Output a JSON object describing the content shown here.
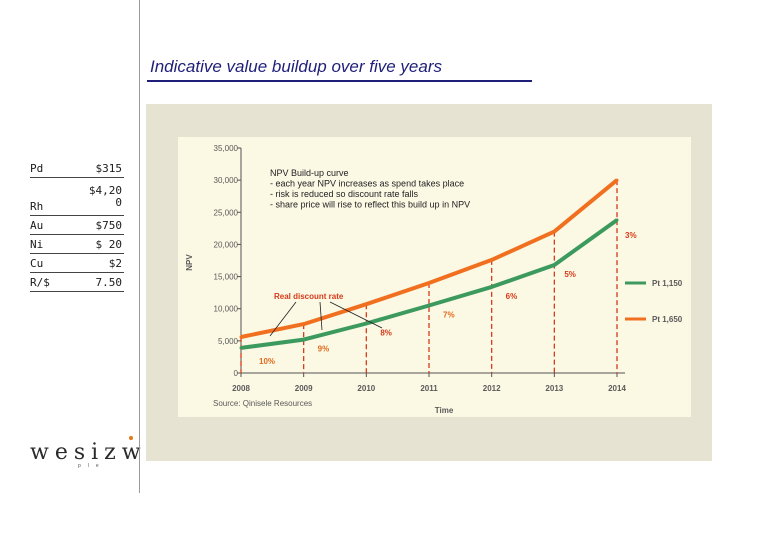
{
  "page": {
    "title": "Indicative value buildup over five years"
  },
  "assumptions_table": [
    {
      "metal": "Pd",
      "value": "$315"
    },
    {
      "metal": "Rh",
      "value": "$4,20\n0"
    },
    {
      "metal": "Au",
      "value": "$750"
    },
    {
      "metal": "Ni",
      "value": "$ 20"
    },
    {
      "metal": "Cu",
      "value": "$2"
    },
    {
      "metal": "R/$",
      "value": "7.50"
    }
  ],
  "logo": {
    "word": "wesizwe",
    "sub": "ple"
  },
  "colors": {
    "title": "#1f1f7a",
    "orange": "#f07020",
    "green": "#3c9a5e",
    "red_text": "#d63a1a",
    "panel": "#e7e3d3",
    "plot": "#fbf8e4"
  },
  "chart_data": {
    "type": "line",
    "x": [
      "2008",
      "2009",
      "2010",
      "2011",
      "2012",
      "2013",
      "2014"
    ],
    "xlabel": "Time",
    "ylabel": "NPV",
    "ylim": [
      0,
      35000
    ],
    "yticks": [
      "0",
      "5,000",
      "10,000",
      "15,000",
      "20,000",
      "25,000",
      "30,000",
      "35,000"
    ],
    "series": [
      {
        "name": "Pt 1,650",
        "color": "orange",
        "values": [
          5600,
          7600,
          10700,
          14000,
          17600,
          22000,
          30000
        ]
      },
      {
        "name": "Pt 1,150",
        "color": "green",
        "values": [
          3900,
          5200,
          7700,
          10500,
          13400,
          16800,
          23800
        ]
      }
    ],
    "discount_rates": [
      {
        "label": "10%",
        "x": "2008"
      },
      {
        "label": "9%",
        "x": "2009"
      },
      {
        "label": "8%",
        "x": "2010"
      },
      {
        "label": "7%",
        "x": "2011"
      },
      {
        "label": "6%",
        "x": "2012"
      },
      {
        "label": "5%",
        "x": "2013"
      },
      {
        "label": "3%",
        "x": "2014"
      }
    ],
    "discount_label": "Real discount rate",
    "annotation": [
      "NPV Build-up curve",
      "- each year NPV increases as spend takes place",
      "- risk is reduced so discount rate falls",
      "- share price will rise to reflect this build up in NPV"
    ],
    "source": "Source: Qinisele Resources",
    "legend_placement": "right"
  }
}
